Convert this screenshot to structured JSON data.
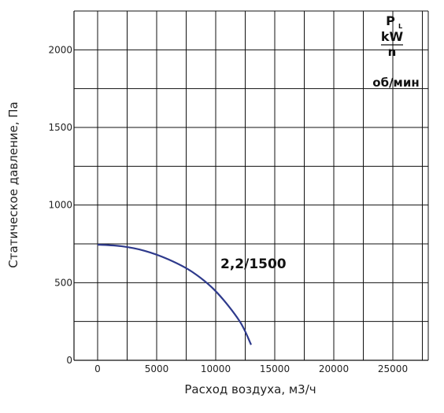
{
  "chart_data": {
    "type": "line",
    "xlabel": "Расход воздуха, м3/ч",
    "ylabel": "Статическое давление, Па",
    "xlim": [
      -2000,
      28000
    ],
    "ylim": [
      0,
      2250
    ],
    "xticks": [
      0,
      5000,
      10000,
      15000,
      20000,
      25000
    ],
    "xtick_labels": [
      "0",
      "5000",
      "10000",
      "15000",
      "20000",
      "25000"
    ],
    "yticks": [
      0,
      500,
      1000,
      1500,
      2000
    ],
    "ytick_labels": [
      "0",
      "500",
      "1000",
      "1500",
      "2000"
    ],
    "grid": true,
    "legend": {
      "symbol": "P",
      "subscript": "L",
      "unit": "kW",
      "speed_symbol": "n",
      "speed_unit": "об/мин",
      "placement": "top-right"
    },
    "series": [
      {
        "label": "2,2/1500",
        "color": "#2e3a8c",
        "x": [
          0,
          2000,
          4000,
          6000,
          8000,
          10000,
          12000,
          13000
        ],
        "y": [
          745,
          735,
          705,
          650,
          570,
          445,
          255,
          100
        ]
      }
    ]
  }
}
